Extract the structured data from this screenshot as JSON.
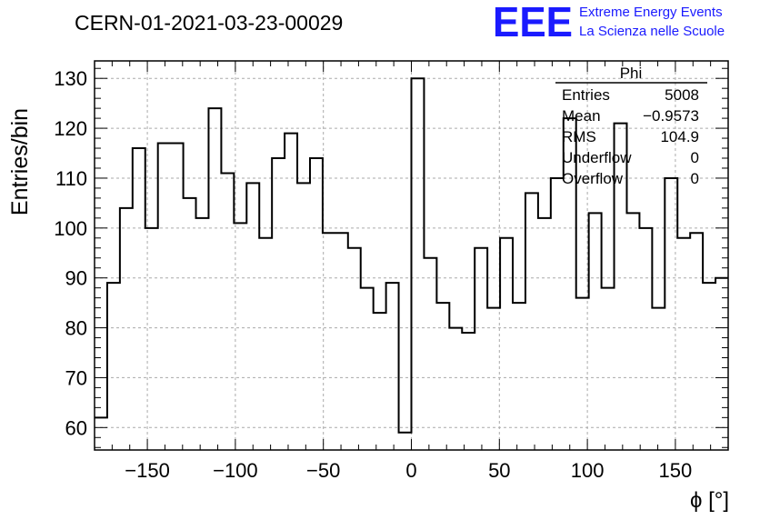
{
  "header": {
    "run_title": "CERN-01-2021-03-23-00029",
    "logo_text": "EEE",
    "logo_line1": "Extreme Energy Events",
    "logo_line2": "La Scienza nelle Scuole",
    "logo_color": "#1a1aff"
  },
  "stats_box": {
    "title": "Phi",
    "rows": [
      {
        "label": "Entries",
        "value": "5008"
      },
      {
        "label": "Mean",
        "value": "−0.9573"
      },
      {
        "label": "RMS",
        "value": "104.9"
      },
      {
        "label": "Underflow",
        "value": "0"
      },
      {
        "label": "Overflow",
        "value": "0"
      }
    ]
  },
  "chart_data": {
    "type": "histogram",
    "title": "CERN-01-2021-03-23-00029",
    "xlabel": "ϕ [°]",
    "ylabel": "Entries/bin",
    "xlim": [
      -180,
      180
    ],
    "ylim": [
      55.5,
      133.5
    ],
    "grid": true,
    "bin_width": 7.2,
    "bin_edges_start": -180,
    "values": [
      62,
      89,
      104,
      116,
      100,
      117,
      117,
      106,
      102,
      124,
      111,
      101,
      109,
      98,
      114,
      119,
      109,
      114,
      99,
      99,
      96,
      88,
      83,
      89,
      59,
      130,
      94,
      85,
      80,
      79,
      96,
      84,
      98,
      85,
      107,
      102,
      110,
      122,
      86,
      103,
      88,
      121,
      103,
      100,
      84,
      110,
      98,
      99,
      89,
      90
    ],
    "x_ticks": [
      -150,
      -100,
      -50,
      0,
      50,
      100,
      150
    ],
    "x_tick_labels": [
      "−150",
      "−100",
      "−50",
      "0",
      "50",
      "100",
      "150"
    ],
    "y_ticks": [
      60,
      70,
      80,
      90,
      100,
      110,
      120,
      130
    ],
    "y_tick_labels": [
      "60",
      "70",
      "80",
      "90",
      "100",
      "110",
      "120",
      "130"
    ]
  }
}
